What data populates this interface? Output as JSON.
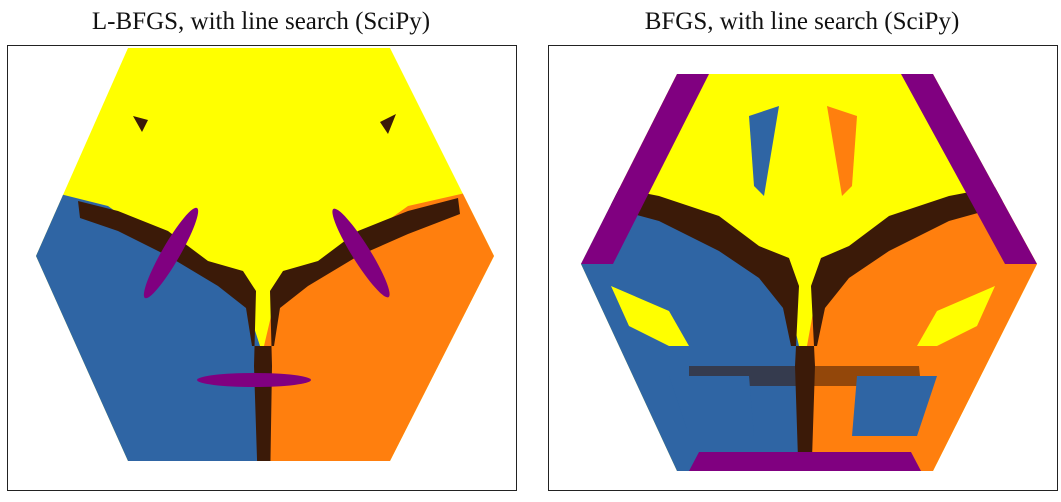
{
  "panels": [
    {
      "title": "L-BFGS, with line search (SciPy)"
    },
    {
      "title": "BFGS, with line search (SciPy)"
    }
  ],
  "colors": {
    "yellow": "#ffff00",
    "blue": "#2f65a4",
    "orange": "#ff7f0e",
    "dark_brown": "#3b1a08",
    "purple": "#800080"
  }
}
